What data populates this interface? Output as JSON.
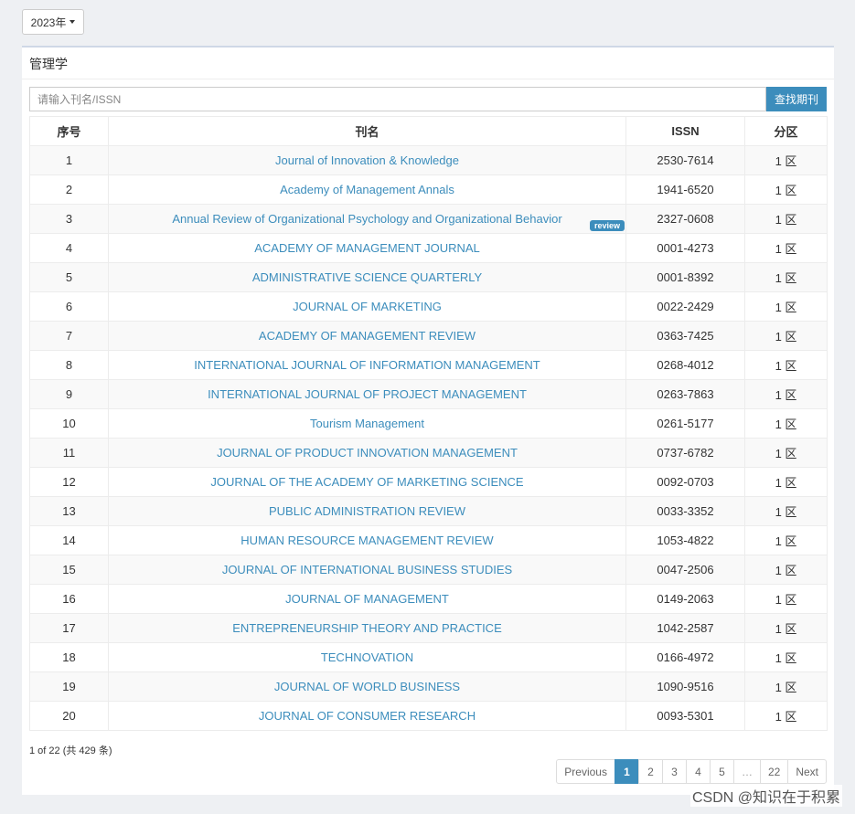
{
  "year_selector": {
    "label": "2023年"
  },
  "panel": {
    "title": "管理学"
  },
  "search": {
    "placeholder": "请输入刊名/ISSN",
    "button_label": "查找期刊"
  },
  "table": {
    "headers": [
      "序号",
      "刊名",
      "ISSN",
      "分区"
    ],
    "badge_label": "review",
    "rows": [
      {
        "no": "1",
        "name": "Journal of Innovation & Knowledge",
        "issn": "2530-7614",
        "zone": "1 区"
      },
      {
        "no": "2",
        "name": "Academy of Management Annals",
        "issn": "1941-6520",
        "zone": "1 区"
      },
      {
        "no": "3",
        "name": "Annual Review of Organizational Psychology and Organizational Behavior",
        "issn": "2327-0608",
        "zone": "1 区",
        "review": true
      },
      {
        "no": "4",
        "name": "ACADEMY OF MANAGEMENT JOURNAL",
        "issn": "0001-4273",
        "zone": "1 区"
      },
      {
        "no": "5",
        "name": "ADMINISTRATIVE SCIENCE QUARTERLY",
        "issn": "0001-8392",
        "zone": "1 区"
      },
      {
        "no": "6",
        "name": "JOURNAL OF MARKETING",
        "issn": "0022-2429",
        "zone": "1 区"
      },
      {
        "no": "7",
        "name": "ACADEMY OF MANAGEMENT REVIEW",
        "issn": "0363-7425",
        "zone": "1 区"
      },
      {
        "no": "8",
        "name": "INTERNATIONAL JOURNAL OF INFORMATION MANAGEMENT",
        "issn": "0268-4012",
        "zone": "1 区"
      },
      {
        "no": "9",
        "name": "INTERNATIONAL JOURNAL OF PROJECT MANAGEMENT",
        "issn": "0263-7863",
        "zone": "1 区"
      },
      {
        "no": "10",
        "name": "Tourism Management",
        "issn": "0261-5177",
        "zone": "1 区"
      },
      {
        "no": "11",
        "name": "JOURNAL OF PRODUCT INNOVATION MANAGEMENT",
        "issn": "0737-6782",
        "zone": "1 区"
      },
      {
        "no": "12",
        "name": "JOURNAL OF THE ACADEMY OF MARKETING SCIENCE",
        "issn": "0092-0703",
        "zone": "1 区"
      },
      {
        "no": "13",
        "name": "PUBLIC ADMINISTRATION REVIEW",
        "issn": "0033-3352",
        "zone": "1 区"
      },
      {
        "no": "14",
        "name": "HUMAN RESOURCE MANAGEMENT REVIEW",
        "issn": "1053-4822",
        "zone": "1 区"
      },
      {
        "no": "15",
        "name": "JOURNAL OF INTERNATIONAL BUSINESS STUDIES",
        "issn": "0047-2506",
        "zone": "1 区"
      },
      {
        "no": "16",
        "name": "JOURNAL OF MANAGEMENT",
        "issn": "0149-2063",
        "zone": "1 区"
      },
      {
        "no": "17",
        "name": "ENTREPRENEURSHIP THEORY AND PRACTICE",
        "issn": "1042-2587",
        "zone": "1 区"
      },
      {
        "no": "18",
        "name": "TECHNOVATION",
        "issn": "0166-4972",
        "zone": "1 区"
      },
      {
        "no": "19",
        "name": "JOURNAL OF WORLD BUSINESS",
        "issn": "1090-9516",
        "zone": "1 区"
      },
      {
        "no": "20",
        "name": "JOURNAL OF CONSUMER RESEARCH",
        "issn": "0093-5301",
        "zone": "1 区"
      }
    ]
  },
  "page_info": "1 of 22 (共 429 条)",
  "pagination": {
    "previous": "Previous",
    "pages": [
      "1",
      "2",
      "3",
      "4",
      "5",
      "…",
      "22"
    ],
    "current": "1",
    "next": "Next"
  },
  "watermark": "CSDN @知识在于积累",
  "colors": {
    "accent": "#3c8dbc",
    "link": "#3c8dbc",
    "stripe": "#f9f9f9",
    "background": "#eef0f3"
  }
}
